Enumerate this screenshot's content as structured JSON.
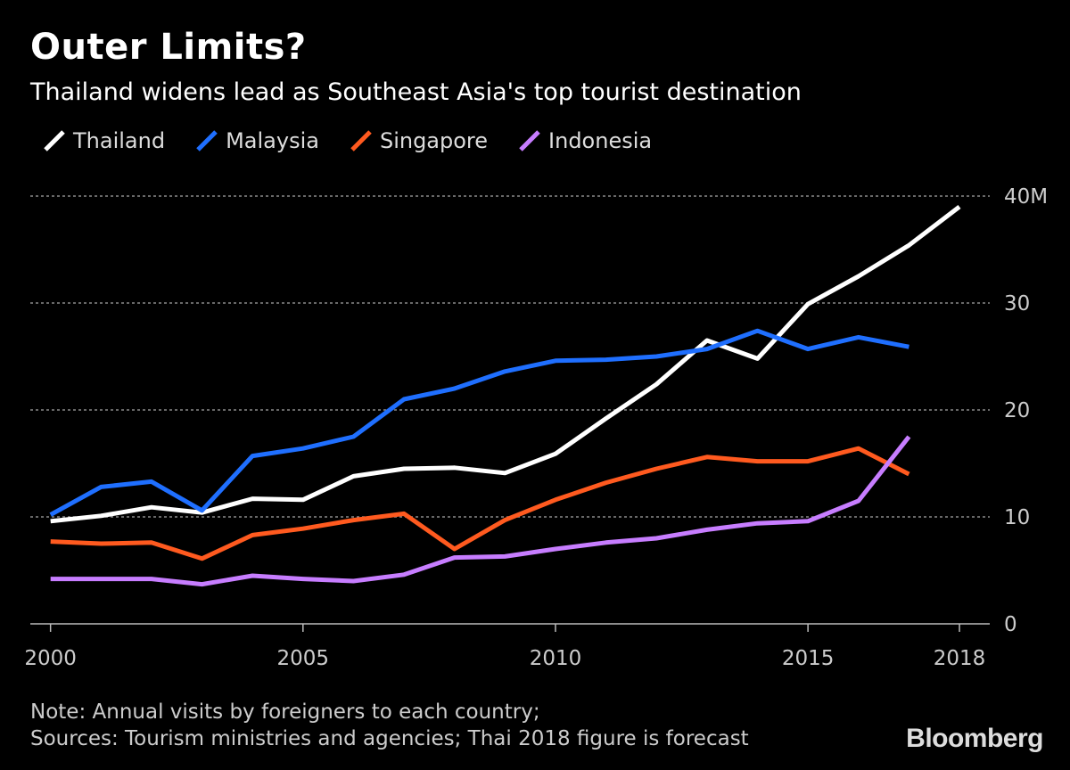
{
  "chart_data": {
    "type": "line",
    "title": "Outer Limits?",
    "subtitle": "Thailand widens lead as Southeast Asia's top tourist destination",
    "x": [
      2000,
      2001,
      2002,
      2003,
      2004,
      2005,
      2006,
      2007,
      2008,
      2009,
      2010,
      2011,
      2012,
      2013,
      2014,
      2015,
      2016,
      2017,
      2018
    ],
    "xlim": [
      1999.6,
      2018.6
    ],
    "xticks": [
      2000,
      2005,
      2010,
      2015,
      2018
    ],
    "xtick_labels": [
      "2000",
      "2005",
      "2010",
      "2015",
      "2018"
    ],
    "ylim": [
      0,
      40
    ],
    "yticks": [
      0,
      10,
      20,
      30,
      40
    ],
    "ytick_labels": [
      "0",
      "10",
      "20",
      "30",
      "40M"
    ],
    "grid": true,
    "legend_position": "top-left",
    "series": [
      {
        "name": "Thailand",
        "color": "#ffffff",
        "x": [
          2000,
          2001,
          2002,
          2003,
          2004,
          2005,
          2006,
          2007,
          2008,
          2009,
          2010,
          2011,
          2012,
          2013,
          2014,
          2015,
          2016,
          2017,
          2018
        ],
        "values": [
          9.6,
          10.1,
          10.9,
          10.4,
          11.7,
          11.6,
          13.8,
          14.5,
          14.6,
          14.1,
          15.9,
          19.2,
          22.4,
          26.5,
          24.8,
          29.9,
          32.5,
          35.4,
          39.0
        ]
      },
      {
        "name": "Malaysia",
        "color": "#1f6fff",
        "x": [
          2000,
          2001,
          2002,
          2003,
          2004,
          2005,
          2006,
          2007,
          2008,
          2009,
          2010,
          2011,
          2012,
          2013,
          2014,
          2015,
          2016,
          2017
        ],
        "values": [
          10.2,
          12.8,
          13.3,
          10.6,
          15.7,
          16.4,
          17.5,
          21.0,
          22.0,
          23.6,
          24.6,
          24.7,
          25.0,
          25.7,
          27.4,
          25.7,
          26.8,
          25.9
        ]
      },
      {
        "name": "Singapore",
        "color": "#ff5a1f",
        "x": [
          2000,
          2001,
          2002,
          2003,
          2004,
          2005,
          2006,
          2007,
          2008,
          2009,
          2010,
          2011,
          2012,
          2013,
          2014,
          2015,
          2016,
          2017
        ],
        "values": [
          7.7,
          7.5,
          7.6,
          6.1,
          8.3,
          8.9,
          9.7,
          10.3,
          7.0,
          9.7,
          11.6,
          13.2,
          14.5,
          15.6,
          15.2,
          15.2,
          16.4,
          14.0
        ]
      },
      {
        "name": "Indonesia",
        "color": "#c77dff",
        "x": [
          2000,
          2001,
          2002,
          2003,
          2004,
          2005,
          2006,
          2007,
          2008,
          2009,
          2010,
          2011,
          2012,
          2013,
          2014,
          2015,
          2016,
          2017
        ],
        "values": [
          4.2,
          4.2,
          4.2,
          3.7,
          4.5,
          4.2,
          4.0,
          4.6,
          6.2,
          6.3,
          7.0,
          7.6,
          8.0,
          8.8,
          9.4,
          9.6,
          11.5,
          17.5
        ]
      }
    ],
    "note": "Note: Annual visits by foreigners to each country;",
    "source": "Sources: Tourism ministries and agencies; Thai 2018 figure is forecast",
    "brand": "Bloomberg"
  }
}
